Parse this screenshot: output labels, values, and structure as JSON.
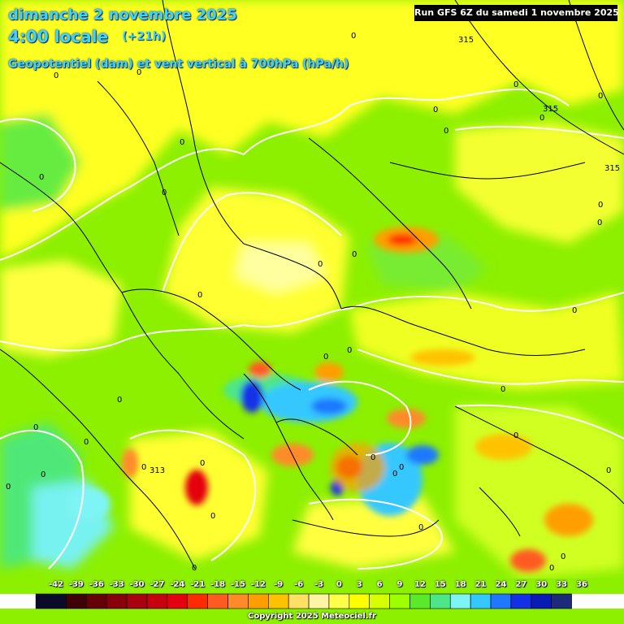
{
  "header": {
    "date": "dimanche 2 novembre 2025",
    "local_time": "4:00 locale",
    "lead_time": "(+21h)",
    "parameter": "Geopotentiel (dam) et vent vertical à 700hPa (hPa/h)"
  },
  "run_info": "Run GFS 6Z du samedi 1 novembre 2025",
  "contour_labels": {
    "zero": "0",
    "iso_315": "315",
    "iso_313": "313"
  },
  "legend": {
    "ticks": [
      "-42",
      "-39",
      "-36",
      "-33",
      "-30",
      "-27",
      "-24",
      "-21",
      "-18",
      "-15",
      "-12",
      "-9",
      "-6",
      "-3",
      "0",
      "3",
      "6",
      "9",
      "12",
      "15",
      "18",
      "21",
      "24",
      "27",
      "30",
      "33",
      "36"
    ],
    "colors": [
      "#0a0a2a",
      "#3d0005",
      "#650006",
      "#87000b",
      "#a80010",
      "#c7000f",
      "#e4000f",
      "#ff2a00",
      "#ff5a22",
      "#ff8a2a",
      "#ff9e00",
      "#ffc200",
      "#ffe066",
      "#fff4a6",
      "#ffff4c",
      "#ffff00",
      "#d6ff00",
      "#9eff00",
      "#5bea2a",
      "#4ee68a",
      "#7ff4f4",
      "#35c8ff",
      "#1f78ff",
      "#1430e6",
      "#0a1ab4",
      "#1b2a7a"
    ]
  },
  "copyright": "Copyright 2025 Meteociel.fr"
}
